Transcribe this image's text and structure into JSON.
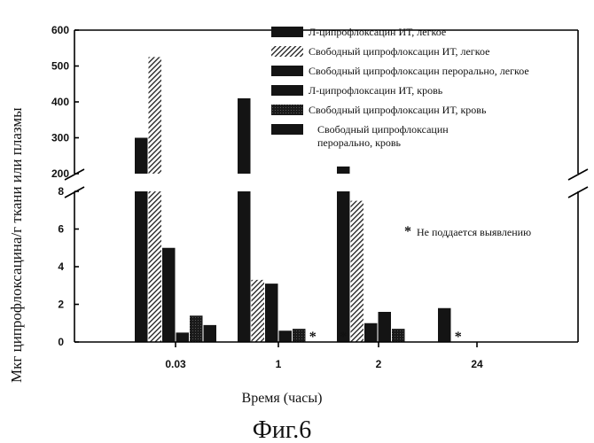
{
  "chart_data": {
    "type": "bar",
    "ylabel": "Мкг ципрофлоксацина/г ткани или плазмы",
    "xlabel": "Время (часы)",
    "figure_caption": "Фиг.6",
    "categories": [
      "0.03",
      "1",
      "2",
      "24"
    ],
    "y_ticks_lower": [
      "0",
      "2",
      "4",
      "6",
      "8"
    ],
    "y_ticks_upper": [
      "200",
      "300",
      "400",
      "500",
      "600"
    ],
    "ylim_lower": [
      0,
      8
    ],
    "ylim_upper": [
      200,
      600
    ],
    "broken_axis": true,
    "legend_position": "top-right",
    "series": [
      {
        "name": "Л-ципрофлоксацин ИТ, легкое",
        "values": [
          300,
          410,
          220,
          1.8
        ]
      },
      {
        "name": "Свободный ципрофлоксацин ИТ, легкое",
        "values": [
          525,
          3.3,
          7.5,
          null
        ]
      },
      {
        "name": "Свободный ципрофлоксацин перорально, легкое",
        "values": [
          5.0,
          3.1,
          1.0,
          null
        ]
      },
      {
        "name": "Л-ципрофлоксацин ИТ, кровь",
        "values": [
          0.5,
          0.6,
          1.6,
          null
        ]
      },
      {
        "name": "Свободный ципрофлоксацин ИТ, кровь",
        "values": [
          1.4,
          0.7,
          0.7,
          null
        ]
      },
      {
        "name": "Свободный ципрофлоксацин перорально, кровь",
        "values": [
          0.9,
          null,
          null,
          null
        ]
      }
    ],
    "not_detected_markers": [
      {
        "category": "1",
        "series": 5
      },
      {
        "category": "2",
        "series": 0
      },
      {
        "category": "24",
        "series": 1
      }
    ],
    "annotation": "Не поддается выявлению",
    "annotation_marker": "*"
  },
  "colors": {
    "dark": "#141414",
    "hatched": "#2e2e2e",
    "axis": "#000000"
  }
}
